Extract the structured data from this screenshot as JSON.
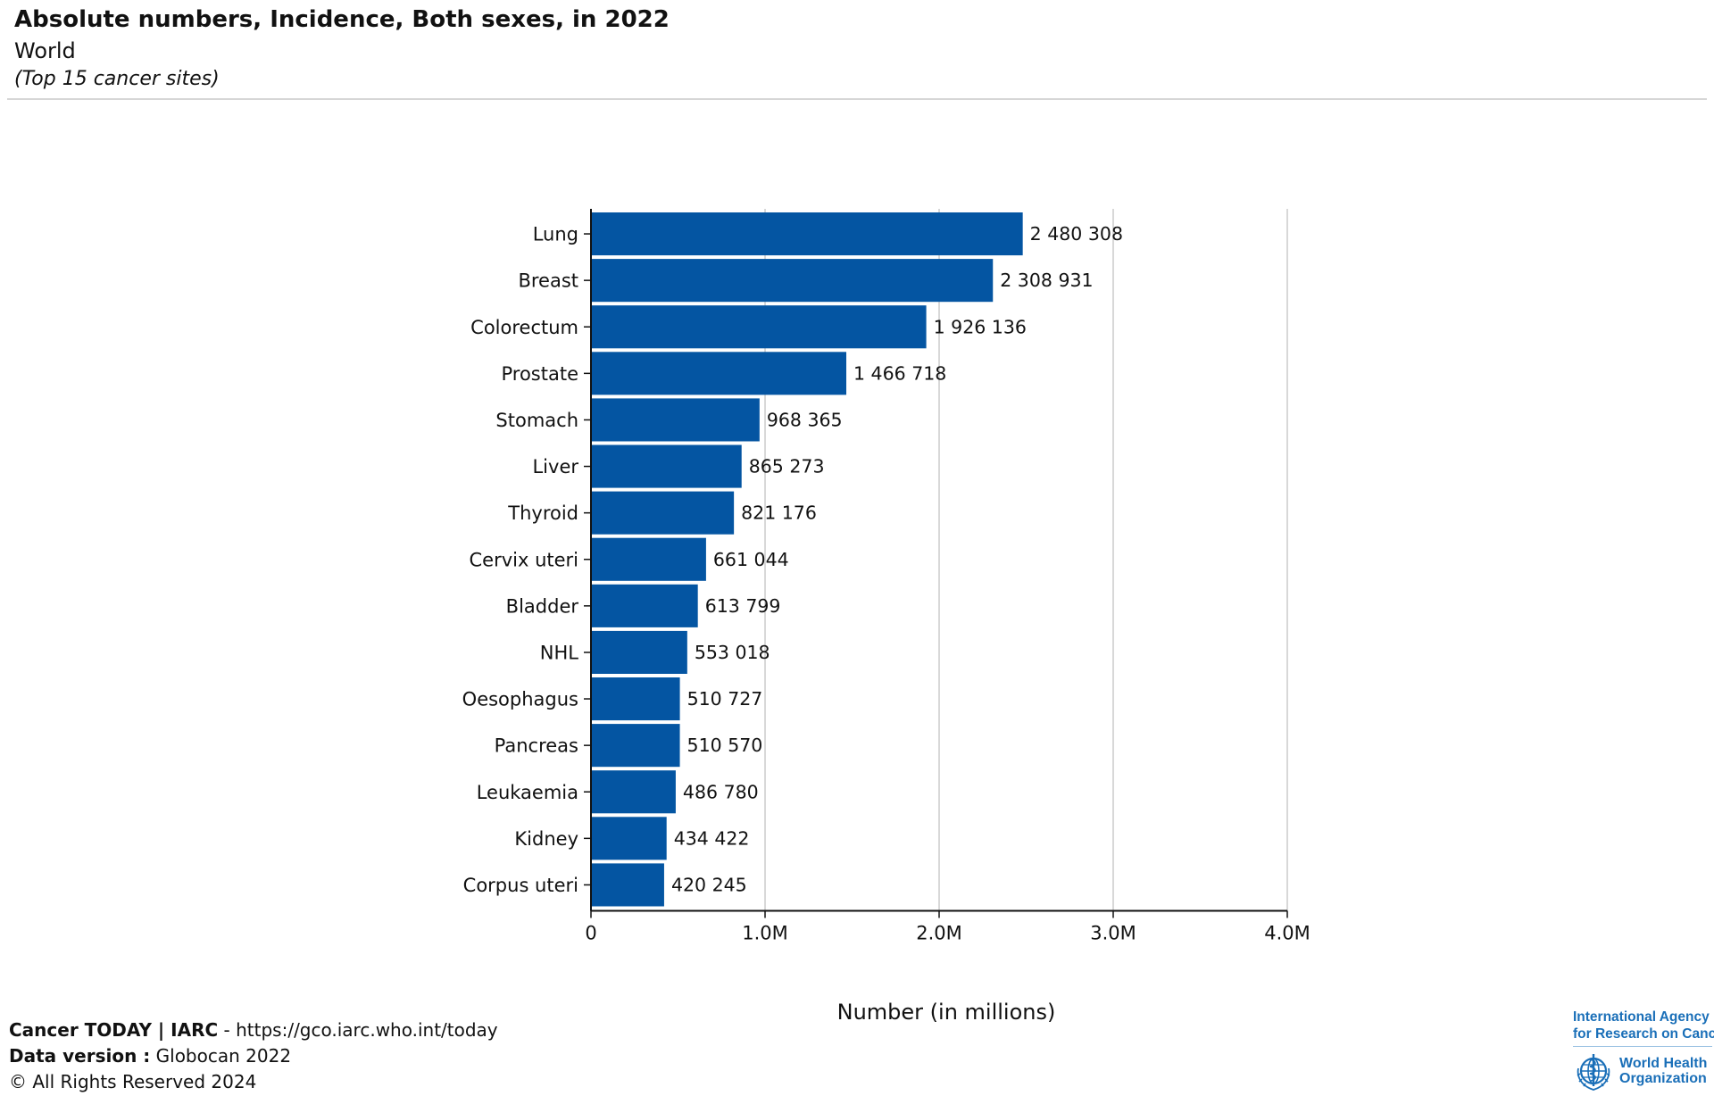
{
  "header": {
    "title": "Absolute numbers, Incidence, Both sexes, in 2022",
    "subtitle": "World",
    "note": "(Top 15 cancer sites)"
  },
  "chart_data": {
    "type": "bar",
    "orientation": "horizontal",
    "categories": [
      "Lung",
      "Breast",
      "Colorectum",
      "Prostate",
      "Stomach",
      "Liver",
      "Thyroid",
      "Cervix uteri",
      "Bladder",
      "NHL",
      "Oesophagus",
      "Pancreas",
      "Leukaemia",
      "Kidney",
      "Corpus uteri"
    ],
    "values": [
      2480308,
      2308931,
      1926136,
      1466718,
      968365,
      865273,
      821176,
      661044,
      613799,
      553018,
      510727,
      510570,
      486780,
      434422,
      420245
    ],
    "value_labels": [
      "2 480 308",
      "2 308 931",
      "1 926 136",
      "1 466 718",
      "968 365",
      "865 273",
      "821 176",
      "661 044",
      "613 799",
      "553 018",
      "510 727",
      "510 570",
      "486 780",
      "434 422",
      "420 245"
    ],
    "xticks": [
      0,
      1000000,
      2000000,
      3000000,
      4000000
    ],
    "xtick_labels": [
      "0",
      "1.0M",
      "2.0M",
      "3.0M",
      "4.0M"
    ],
    "xlim": [
      0,
      4000000
    ],
    "xlabel": "Number (in millions)",
    "grid": "vertical",
    "bar_color": "#0455a2"
  },
  "footer": {
    "line1_bold": "Cancer TODAY | IARC",
    "line1_rest": " - https://gco.iarc.who.int/today",
    "line2_bold": "Data version :",
    "line2_rest": " Globocan 2022",
    "line3": "© All Rights Reserved 2024"
  },
  "logo": {
    "iarc_line1": "International Agency",
    "iarc_line2": "for Research on Cancer",
    "who_line1": "World Health",
    "who_line2": "Organization",
    "color": "#1a6fb8"
  }
}
